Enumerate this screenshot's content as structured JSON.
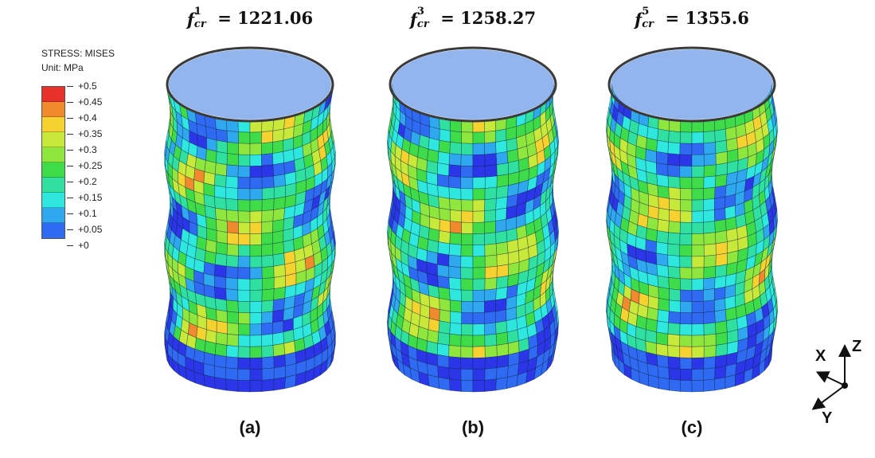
{
  "legend": {
    "title": "STRESS: MISES",
    "unit": "Unit: MPa",
    "ticks": [
      "+0.5",
      "+0.45",
      "+0.4",
      "+0.35",
      "+0.3",
      "+0.25",
      "+0.2",
      "+0.15",
      "+0.1",
      "+0.05",
      "+0"
    ],
    "colors": [
      "#e8312a",
      "#f08a2c",
      "#f5d230",
      "#c8e83a",
      "#8fe63c",
      "#3fdc4a",
      "#2fe0a0",
      "#2ee8e0",
      "#2fa8f0",
      "#2f6af2",
      "#2a36e8"
    ]
  },
  "panels": [
    {
      "f_base": "f",
      "f_sup": "1",
      "f_sub": "cr",
      "equals": "=",
      "value": "1221.06",
      "label": "(a)"
    },
    {
      "f_base": "f",
      "f_sup": "3",
      "f_sub": "cr",
      "equals": "=",
      "value": "1258.27",
      "label": "(b)"
    },
    {
      "f_base": "f",
      "f_sup": "5",
      "f_sub": "cr",
      "equals": "=",
      "value": "1355.6",
      "label": "(c)"
    }
  ],
  "axes": {
    "z": "Z",
    "x": "X",
    "y": "Y"
  },
  "palette": {
    "background": "#ffffff",
    "low": "#1f35c4",
    "mid": "#2fc8c0",
    "high": "#e82a22"
  }
}
